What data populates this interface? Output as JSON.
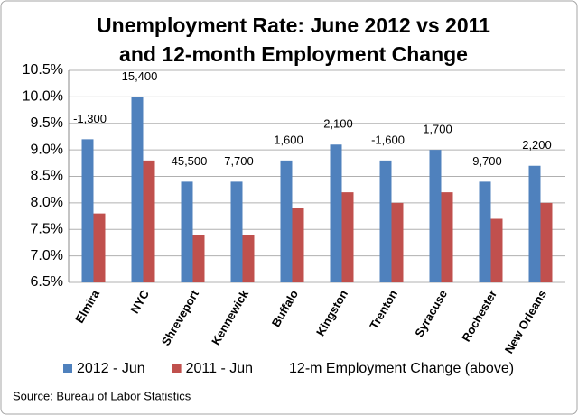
{
  "chart_data": {
    "type": "bar",
    "title": [
      "Unemployment Rate: June 2012 vs 2011",
      "and 12-month Employment Change"
    ],
    "categories": [
      "Elmira",
      "NYC",
      "Shreveport",
      "Kennewick",
      "Buffalo",
      "Kingston",
      "Trenton",
      "Syracuse",
      "Rochester",
      "New Orleans"
    ],
    "series": [
      {
        "name": "2012 - Jun",
        "color": "#4f81bd",
        "values": [
          9.2,
          10.0,
          8.4,
          8.4,
          8.8,
          9.1,
          8.8,
          9.0,
          8.4,
          8.7
        ]
      },
      {
        "name": "2011 - Jun",
        "color": "#c0504d",
        "values": [
          7.8,
          8.8,
          7.4,
          7.4,
          7.9,
          8.2,
          8.0,
          8.2,
          7.7,
          8.0
        ]
      }
    ],
    "employment_change": {
      "name": "12-m Employment Change (above)",
      "values": [
        -1300,
        15400,
        45500,
        7700,
        1600,
        2100,
        -1600,
        1700,
        9700,
        2200
      ],
      "value_labels": [
        "-1,300",
        "15,400",
        "45,500",
        "7,700",
        "1,600",
        "2,100",
        "-1,600",
        "1,700",
        "9,700",
        "2,200"
      ]
    },
    "ylim": [
      6.5,
      10.5
    ],
    "yticks": [
      {
        "value": 6.5,
        "label": "6.5%"
      },
      {
        "value": 7.0,
        "label": "7.0%"
      },
      {
        "value": 7.5,
        "label": "7.5%"
      },
      {
        "value": 8.0,
        "label": "8.0%"
      },
      {
        "value": 8.5,
        "label": "8.5%"
      },
      {
        "value": 9.0,
        "label": "9.0%"
      },
      {
        "value": 9.5,
        "label": "9.5%"
      },
      {
        "value": 10.0,
        "label": "10.0%"
      },
      {
        "value": 10.5,
        "label": "10.5%"
      }
    ],
    "grid": true,
    "source": "Source: Bureau of Labor Statistics"
  }
}
